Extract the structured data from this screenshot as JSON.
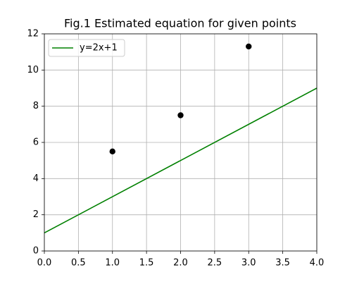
{
  "chart_data": {
    "type": "scatter",
    "title": "Fig.1 Estimated equation for given points",
    "series": [
      {
        "name": "y=2x+1",
        "type": "line",
        "color": "#008000",
        "x": [
          0,
          4
        ],
        "values": [
          1,
          9
        ]
      },
      {
        "type": "scatter",
        "color": "#000000",
        "x": [
          1,
          2,
          3
        ],
        "values": [
          5.5,
          7.5,
          11.3
        ]
      }
    ],
    "xlim": [
      0,
      4
    ],
    "xticks": [
      {
        "value": 0,
        "label": "0.0"
      },
      {
        "value": 0.5,
        "label": "0.5"
      },
      {
        "value": 1,
        "label": "1.0"
      },
      {
        "value": 1.5,
        "label": "1.5"
      },
      {
        "value": 2,
        "label": "2.0"
      },
      {
        "value": 2.5,
        "label": "2.5"
      },
      {
        "value": 3,
        "label": "3.0"
      },
      {
        "value": 3.5,
        "label": "3.5"
      },
      {
        "value": 4,
        "label": "4.0"
      }
    ],
    "ylim": [
      0,
      12
    ],
    "yticks": [
      0,
      2,
      4,
      6,
      8,
      10,
      12
    ],
    "grid": true,
    "legend": "upper left"
  }
}
